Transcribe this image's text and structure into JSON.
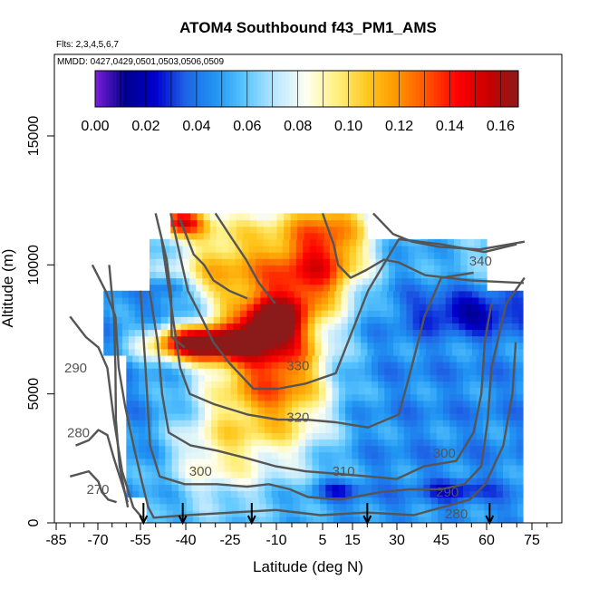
{
  "chart_data": {
    "type": "heatmap",
    "title": "ATOM4 Southbound f43_PM1_AMS",
    "flights_note": "Flts: 2,3,4,5,6,7",
    "dates_note": "MMDD: 0427,0429,0501,0503,0506,0509",
    "xlabel": "Latitude (deg N)",
    "ylabel": "Altitude (m)",
    "xlim": [
      -85,
      85
    ],
    "ylim": [
      0,
      18000
    ],
    "x_ticks": [
      -85,
      -70,
      -55,
      -40,
      -25,
      -10,
      5,
      15,
      30,
      45,
      60,
      75
    ],
    "y_ticks": [
      0,
      5000,
      10000,
      15000
    ],
    "colorbar": {
      "min": 0.0,
      "max": 0.167,
      "tick_labels": [
        "0.00",
        "0.02",
        "0.04",
        "0.06",
        "0.08",
        "0.10",
        "0.12",
        "0.14",
        "0.16"
      ],
      "tick_values": [
        0.0,
        0.02,
        0.04,
        0.06,
        0.08,
        0.1,
        0.12,
        0.14,
        0.16
      ],
      "colors": [
        "#7b1fd8",
        "#00008b",
        "#0000cd",
        "#1e64e6",
        "#2196f3",
        "#5ec8ff",
        "#bde8ff",
        "#fffff0",
        "#fff080",
        "#ffc81e",
        "#ff9600",
        "#ff5000",
        "#ff0000",
        "#c80000",
        "#8b1a1a"
      ]
    },
    "contours": [
      {
        "label": "340",
        "label_x": 58,
        "label_y": 10150
      },
      {
        "label": "330",
        "label_x": -3,
        "label_y": 6100
      },
      {
        "label": "320",
        "label_x": -3,
        "label_y": 4100
      },
      {
        "label": "310",
        "label_x": 12,
        "label_y": 2000
      },
      {
        "label": "300",
        "label_x": -35,
        "label_y": 2000
      },
      {
        "label": "300",
        "label_x": 46,
        "label_y": 2700
      },
      {
        "label": "290",
        "label_x": -78,
        "label_y": 6000
      },
      {
        "label": "290",
        "label_x": 47,
        "label_y": 1200
      },
      {
        "label": "280",
        "label_x": -77,
        "label_y": 3500
      },
      {
        "label": "280",
        "label_x": 50,
        "label_y": 350
      },
      {
        "label": "270",
        "label_x": -70,
        "label_y": 1300
      }
    ],
    "profile_markers_lat": [
      -54,
      -41,
      -18,
      20,
      61
    ]
  }
}
